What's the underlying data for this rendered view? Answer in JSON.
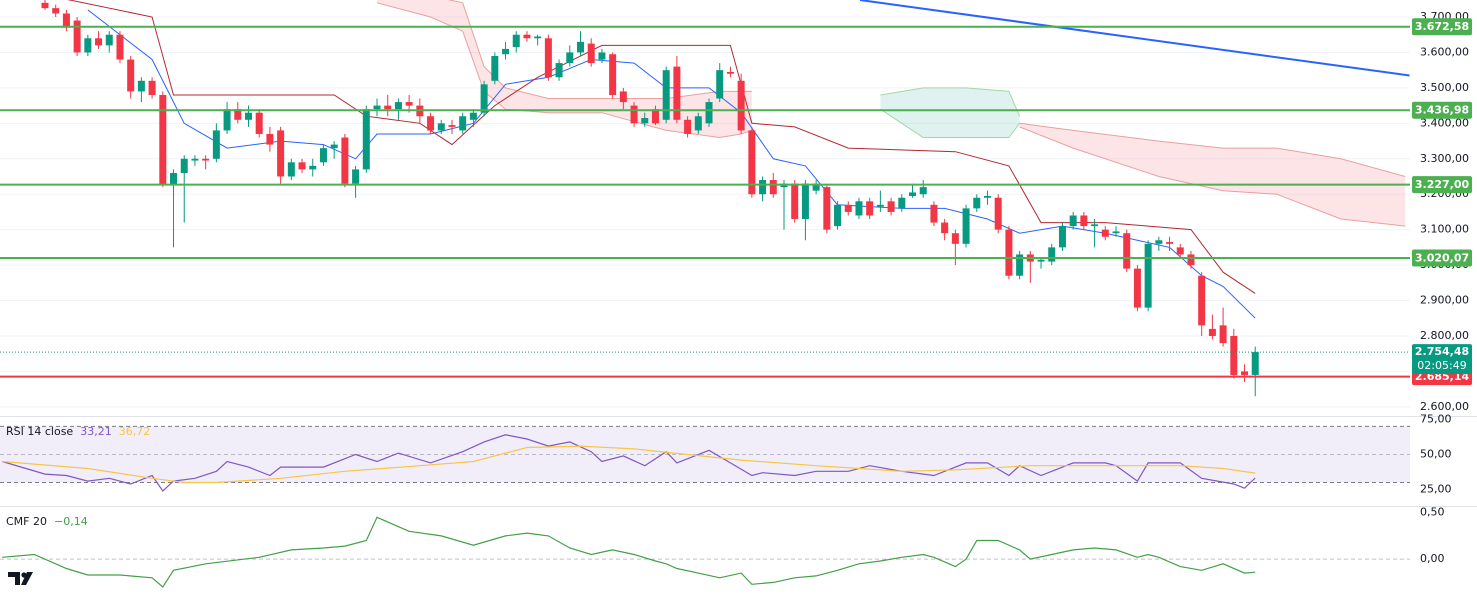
{
  "chart_data": [
    {
      "type": "candlestick",
      "categories": [
        null,
        null,
        null,
        null,
        null,
        null,
        null,
        null,
        null,
        null,
        null,
        null,
        null,
        null,
        null,
        null,
        null,
        null,
        null,
        null,
        null,
        null,
        null,
        null,
        null,
        null,
        null,
        null,
        null,
        null,
        null,
        null,
        null,
        null,
        null,
        null,
        null,
        null,
        null,
        null,
        null,
        null,
        null,
        null,
        null,
        null,
        null,
        null,
        null,
        null,
        null,
        null,
        null,
        null,
        null,
        null,
        null,
        null,
        null,
        null,
        null,
        null,
        null,
        null,
        null,
        null,
        null,
        null,
        null,
        null,
        null,
        null,
        null,
        null,
        null,
        null,
        null,
        null,
        null,
        null,
        null,
        null,
        null,
        null,
        null,
        null,
        null,
        null,
        null,
        null,
        null,
        null,
        null,
        null,
        null,
        null,
        null,
        null,
        null,
        null,
        null,
        null,
        null,
        null,
        null,
        null,
        null,
        null,
        null,
        null,
        null,
        null,
        null,
        null
      ],
      "open": [
        3740,
        3725,
        3710,
        3690,
        3600,
        3640,
        3620,
        3650,
        3580,
        3490,
        3520,
        3480,
        3225,
        3260,
        3295,
        3300,
        3300,
        3380,
        3440,
        3410,
        3430,
        3370,
        3380,
        3250,
        3290,
        3270,
        3290,
        3330,
        3360,
        3230,
        3270,
        3440,
        3450,
        3440,
        3460,
        3450,
        3420,
        3380,
        3395,
        3380,
        3410,
        3430,
        3520,
        3595,
        3615,
        3650,
        3640,
        3640,
        3530,
        3570,
        3600,
        3625,
        3580,
        3595,
        3490,
        3450,
        3400,
        3440,
        3410,
        3560,
        3410,
        3380,
        3400,
        3470,
        3545,
        3520,
        3380,
        3200,
        3240,
        3220,
        3230,
        3130,
        3210,
        3220,
        3110,
        3170,
        3140,
        3180,
        3165,
        3180,
        3160,
        3195,
        3200,
        3170,
        3120,
        3090,
        3060,
        3160,
        3190,
        3190,
        3100,
        2970,
        3030,
        3010,
        3010,
        3050,
        3110,
        3140,
        3110,
        3100,
        3090,
        3090,
        2990,
        2880,
        3060,
        3065,
        3050,
        3030,
        2970,
        2820,
        2830,
        2800,
        2700,
        2690
      ],
      "high": [
        3760,
        3735,
        3720,
        3700,
        3650,
        3660,
        3660,
        3660,
        3590,
        3530,
        3530,
        3490,
        3270,
        3310,
        3310,
        3310,
        3400,
        3460,
        3460,
        3450,
        3440,
        3390,
        3390,
        3300,
        3300,
        3300,
        3340,
        3350,
        3370,
        3280,
        3450,
        3470,
        3480,
        3470,
        3480,
        3470,
        3430,
        3410,
        3410,
        3430,
        3440,
        3520,
        3600,
        3630,
        3660,
        3660,
        3650,
        3650,
        3580,
        3620,
        3660,
        3640,
        3610,
        3600,
        3500,
        3460,
        3430,
        3450,
        3560,
        3590,
        3420,
        3430,
        3470,
        3570,
        3560,
        3540,
        3390,
        3250,
        3260,
        3240,
        3240,
        3240,
        3240,
        3230,
        3180,
        3180,
        3190,
        3190,
        3210,
        3190,
        3200,
        3230,
        3240,
        3180,
        3130,
        3100,
        3170,
        3200,
        3210,
        3200,
        3110,
        3040,
        3040,
        3020,
        3060,
        3120,
        3150,
        3150,
        3130,
        3110,
        3110,
        3100,
        3000,
        3070,
        3080,
        3080,
        3060,
        3040,
        2980,
        2860,
        2880,
        2820,
        2720,
        2770
      ],
      "low": [
        3720,
        3700,
        3660,
        3590,
        3590,
        3610,
        3600,
        3570,
        3470,
        3460,
        3470,
        3220,
        3050,
        3120,
        3280,
        3270,
        3290,
        3370,
        3400,
        3390,
        3360,
        3320,
        3230,
        3240,
        3260,
        3250,
        3280,
        3300,
        3220,
        3190,
        3260,
        3420,
        3420,
        3410,
        3430,
        3400,
        3370,
        3370,
        3370,
        3370,
        3390,
        3420,
        3510,
        3580,
        3600,
        3630,
        3620,
        3520,
        3520,
        3560,
        3590,
        3560,
        3570,
        3470,
        3440,
        3390,
        3390,
        3395,
        3400,
        3400,
        3360,
        3370,
        3390,
        3460,
        3530,
        3370,
        3190,
        3180,
        3190,
        3100,
        3120,
        3070,
        3200,
        3090,
        3100,
        3140,
        3130,
        3130,
        3150,
        3140,
        3150,
        3190,
        3190,
        3110,
        3070,
        3000,
        3050,
        3150,
        3170,
        3090,
        2960,
        2960,
        2950,
        2990,
        3000,
        3040,
        3100,
        3100,
        3050,
        3070,
        3080,
        2980,
        2870,
        2870,
        3040,
        3040,
        3020,
        2990,
        2800,
        2790,
        2770,
        2680,
        2670,
        2630
      ],
      "close": [
        3725,
        3710,
        3670,
        3600,
        3640,
        3620,
        3650,
        3580,
        3490,
        3520,
        3480,
        3225,
        3260,
        3300,
        3300,
        3295,
        3380,
        3440,
        3410,
        3430,
        3370,
        3340,
        3250,
        3290,
        3270,
        3280,
        3330,
        3340,
        3230,
        3270,
        3440,
        3450,
        3440,
        3460,
        3450,
        3420,
        3380,
        3400,
        3390,
        3420,
        3430,
        3510,
        3590,
        3610,
        3650,
        3640,
        3645,
        3530,
        3570,
        3600,
        3630,
        3570,
        3600,
        3480,
        3460,
        3400,
        3415,
        3400,
        3550,
        3410,
        3370,
        3420,
        3460,
        3550,
        3540,
        3380,
        3200,
        3240,
        3200,
        3230,
        3130,
        3230,
        3230,
        3100,
        3170,
        3150,
        3180,
        3140,
        3170,
        3150,
        3190,
        3205,
        3220,
        3120,
        3090,
        3060,
        3160,
        3190,
        3195,
        3100,
        2970,
        3030,
        3010,
        3015,
        3050,
        3110,
        3140,
        3110,
        3115,
        3080,
        3095,
        2990,
        2880,
        3060,
        3070,
        3060,
        3030,
        3000,
        2830,
        2800,
        2780,
        2690,
        2690,
        2754.48
      ],
      "up_color": "#089981",
      "down_color": "#f23645",
      "ylim": [
        2577,
        3748
      ],
      "yticks": [
        {
          "value": 3700,
          "label": "3.700,00"
        },
        {
          "value": 3600,
          "label": "3.600,00"
        },
        {
          "value": 3500,
          "label": "3.500,00"
        },
        {
          "value": 3400,
          "label": "3.400,00"
        },
        {
          "value": 3300,
          "label": "3.300,00"
        },
        {
          "value": 3200,
          "label": "3.200,00"
        },
        {
          "value": 3100,
          "label": "3.100,00"
        },
        {
          "value": 3000,
          "label": "3.000,00"
        },
        {
          "value": 2900,
          "label": "2.900,00"
        },
        {
          "value": 2800,
          "label": "2.800,00"
        },
        {
          "value": 2700,
          "label": "2.700,00"
        },
        {
          "value": 2600,
          "label": "2.600,00"
        }
      ],
      "grid": true,
      "cloud": [
        {
          "color": "rgba(242,54,69,0.13)",
          "edge": "#e8a0a0",
          "x": [
            31,
            36,
            39,
            41,
            43,
            47,
            52,
            58,
            63,
            65,
            66
          ],
          "top": [
            3760,
            3760,
            3740,
            3560,
            3500,
            3470,
            3470,
            3470,
            3490,
            3490,
            3490
          ],
          "bottom": [
            3740,
            3700,
            3660,
            3490,
            3440,
            3430,
            3430,
            3380,
            3360,
            3370,
            3380
          ]
        },
        {
          "color": "rgba(8,153,129,0.13)",
          "edge": "#a5d6a7",
          "x": [
            78,
            82,
            86,
            90,
            91
          ],
          "top": [
            3480,
            3500,
            3500,
            3490,
            3420
          ],
          "bottom": [
            3440,
            3360,
            3360,
            3360,
            3400
          ]
        },
        {
          "color": "rgba(242,54,69,0.13)",
          "edge": "#e8a0a0",
          "x": [
            91,
            96,
            104,
            110,
            115,
            121,
            127
          ],
          "top": [
            3400,
            3380,
            3350,
            3330,
            3330,
            3300,
            3250
          ],
          "bottom": [
            3390,
            3330,
            3250,
            3210,
            3200,
            3130,
            3110
          ]
        }
      ],
      "overlays": [
        {
          "color": "#2962ff",
          "width": 1,
          "x": [
            4,
            10,
            13,
            17,
            22,
            26,
            29,
            31,
            36,
            40,
            43,
            47,
            51,
            55,
            58,
            62,
            65,
            68,
            71,
            74,
            80,
            84,
            88,
            91,
            95,
            99,
            102,
            105,
            108,
            110,
            113
          ],
          "values": [
            3720,
            3580,
            3400,
            3330,
            3350,
            3340,
            3300,
            3370,
            3370,
            3400,
            3510,
            3530,
            3580,
            3570,
            3500,
            3500,
            3430,
            3300,
            3280,
            3170,
            3160,
            3160,
            3130,
            3090,
            3110,
            3090,
            3070,
            3050,
            2970,
            2940,
            2850
          ]
        },
        {
          "color": "#b22833",
          "width": 1,
          "x": [
            2,
            10,
            12,
            27,
            30,
            35,
            38,
            42,
            46,
            52,
            64,
            66,
            70,
            75,
            85,
            90,
            93,
            99,
            103,
            107,
            110,
            113
          ],
          "values": [
            3750,
            3700,
            3480,
            3480,
            3420,
            3400,
            3340,
            3450,
            3530,
            3620,
            3620,
            3400,
            3390,
            3330,
            3320,
            3280,
            3120,
            3120,
            3110,
            3100,
            2980,
            2920
          ]
        },
        {
          "color": "#2962ff",
          "width": 2,
          "x": [
            76.1,
            127.4
          ],
          "values": [
            3748,
            3535
          ]
        }
      ],
      "levels": [
        {
          "value": 3672.58,
          "label": "3.672,58",
          "color": "#4caf50"
        },
        {
          "value": 3436.98,
          "label": "3.436,98",
          "color": "#4caf50"
        },
        {
          "value": 3227.0,
          "label": "3.227,00",
          "color": "#4caf50"
        },
        {
          "value": 3020.07,
          "label": "3.020,07",
          "color": "#4caf50"
        },
        {
          "value": 2685.14,
          "label": "2.685,14",
          "color": "#f23645"
        }
      ],
      "last_price": {
        "value": 2754.48,
        "label": "2.754,48",
        "countdown": "02:05:49",
        "color": "#089981"
      }
    },
    {
      "type": "line",
      "title": "RSI 14 close",
      "ylim": [
        14,
        76
      ],
      "yticks": [
        {
          "value": 75,
          "label": "75,00"
        },
        {
          "value": 50,
          "label": "50,00"
        },
        {
          "value": 25,
          "label": "25,00"
        }
      ],
      "band": [
        30,
        70
      ],
      "midline": 50,
      "band_color": "rgba(126,87,194,0.1)",
      "series": [
        {
          "color": "#7e57c2",
          "value_label": "33,21",
          "x": [
            -4,
            0,
            2,
            4,
            6,
            8,
            10,
            11,
            12,
            14,
            16,
            17,
            19,
            21,
            22,
            26,
            28,
            29,
            31,
            33,
            36,
            39,
            41,
            43,
            45,
            47,
            49,
            51,
            52,
            54,
            56,
            58,
            59,
            62,
            64,
            66,
            67,
            70,
            72,
            75,
            77,
            80,
            83,
            86,
            88,
            90,
            91,
            93,
            96,
            99,
            100,
            102,
            103,
            106,
            108,
            111,
            112,
            113
          ],
          "values": [
            45,
            36,
            35,
            31,
            33,
            29,
            35,
            24,
            31,
            33,
            38,
            45,
            41,
            35,
            41,
            41,
            47,
            50,
            45,
            51,
            44,
            52,
            59,
            64,
            61,
            56,
            59,
            52,
            45,
            49,
            42,
            52,
            44,
            53,
            44,
            35,
            37,
            35,
            38,
            38,
            42,
            38,
            35,
            44,
            44,
            35,
            42,
            35,
            44,
            44,
            42,
            31,
            44,
            44,
            33,
            29,
            26,
            33.21
          ]
        },
        {
          "color": "#f7c548",
          "value_label": "36,72",
          "x": [
            -4,
            4,
            10,
            13,
            16,
            22,
            28,
            35,
            40,
            45,
            50,
            55,
            60,
            65,
            72,
            80,
            85,
            92,
            100,
            106,
            110,
            113
          ],
          "values": [
            45,
            40,
            33,
            30,
            30,
            33,
            38,
            42,
            45,
            55,
            56,
            54,
            50,
            46,
            42,
            38,
            39,
            42,
            42,
            42,
            40,
            36.72
          ]
        }
      ]
    },
    {
      "type": "line",
      "title": "CMF 20",
      "ylim": [
        -0.45,
        0.55
      ],
      "yticks": [
        {
          "value": 0.5,
          "label": "0,50"
        },
        {
          "value": 0,
          "label": "0,00"
        }
      ],
      "midline": 0,
      "series": [
        {
          "color": "#43a047",
          "value_label": "−0,14",
          "x": [
            -4,
            -1,
            2,
            4,
            7,
            10,
            11,
            12,
            15,
            20,
            23,
            26,
            28,
            30,
            31,
            34,
            37,
            40,
            43,
            45,
            47,
            49,
            51,
            53,
            55,
            57,
            58,
            59,
            61,
            63,
            65,
            66,
            68,
            70,
            72,
            74,
            76,
            78,
            80,
            82,
            83,
            85,
            86,
            87,
            89,
            91,
            92,
            94,
            96,
            98,
            100,
            102,
            103,
            104,
            106,
            108,
            110,
            112,
            113
          ],
          "values": [
            0.02,
            0.05,
            -0.1,
            -0.17,
            -0.17,
            -0.2,
            -0.3,
            -0.12,
            -0.05,
            0.02,
            0.1,
            0.12,
            0.14,
            0.2,
            0.45,
            0.3,
            0.25,
            0.15,
            0.25,
            0.28,
            0.25,
            0.12,
            0.05,
            0.1,
            0.05,
            -0.02,
            -0.05,
            -0.1,
            -0.15,
            -0.2,
            -0.15,
            -0.27,
            -0.25,
            -0.2,
            -0.18,
            -0.12,
            -0.05,
            -0.02,
            0.02,
            0.05,
            0.02,
            -0.08,
            0,
            0.2,
            0.2,
            0.1,
            0,
            0.05,
            0.1,
            0.12,
            0.1,
            0.02,
            0.05,
            0.02,
            -0.08,
            -0.12,
            -0.05,
            -0.15,
            -0.14
          ]
        }
      ]
    }
  ]
}
